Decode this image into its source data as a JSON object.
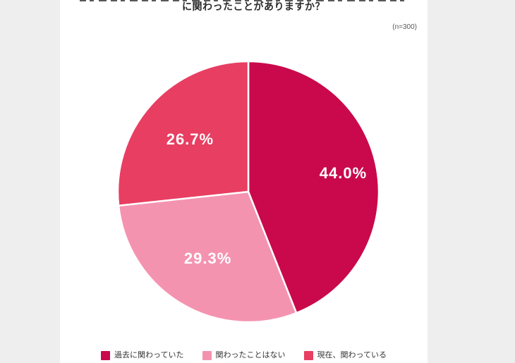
{
  "page": {
    "background_color": "#eeeeee",
    "panel_color": "#ffffff"
  },
  "chart_data": {
    "type": "pie",
    "title": "に関わったことがありますか？",
    "note": "(n=300)",
    "start_angle_deg": 0,
    "direction": "clockwise",
    "legend_position": "bottom",
    "slice_border_color": "#ffffff",
    "slices": [
      {
        "label": "過去に関わっていた",
        "value": 44.0,
        "display": "44.0%",
        "color": "#c9094b",
        "label_r_frac": 0.74
      },
      {
        "label": "関わったことはない",
        "value": 29.3,
        "display": "29.3%",
        "color": "#f493b0",
        "label_r_frac": 0.6
      },
      {
        "label": "現在、関わっている",
        "value": 26.7,
        "display": "26.7%",
        "color": "#e83e62",
        "label_r_frac": 0.6
      }
    ]
  }
}
